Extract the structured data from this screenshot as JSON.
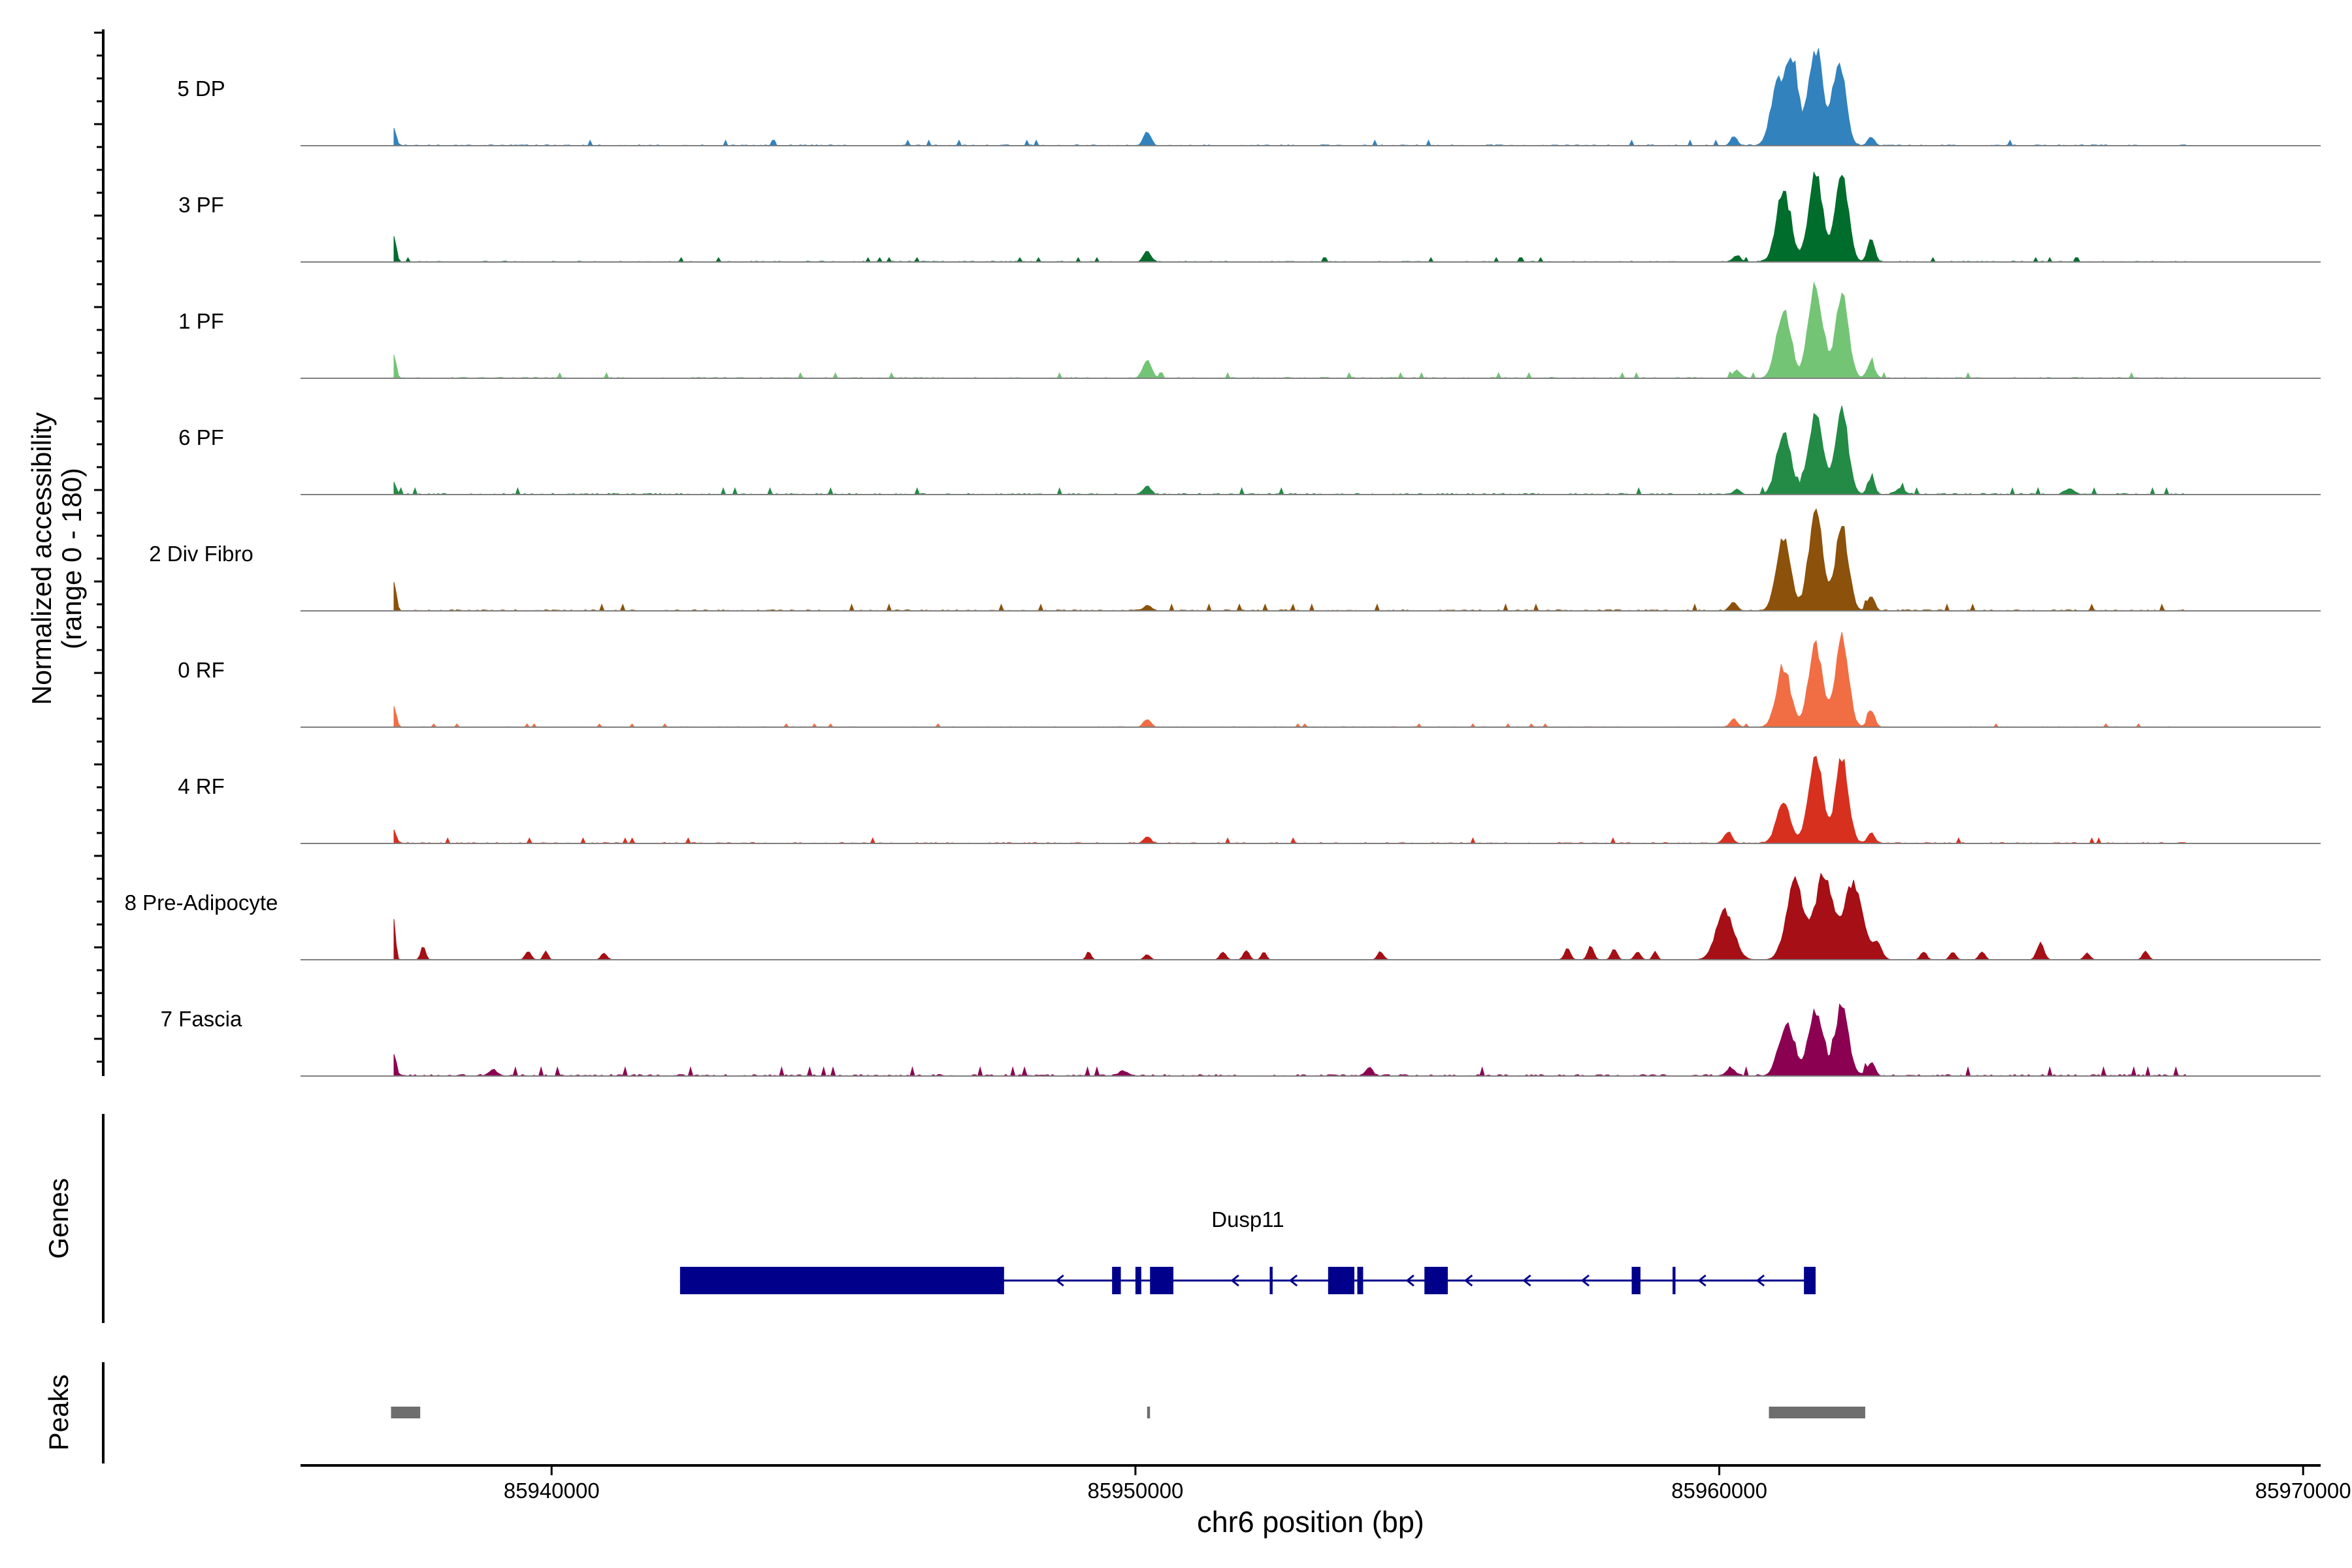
{
  "chart_data": {
    "type": "area",
    "title": "",
    "ylabel_lines": [
      "Normalized accessibility",
      "(range 0 - 180)"
    ],
    "ylim": [
      0,
      180
    ],
    "xlabel": "chr6 position (bp)",
    "xlim": [
      85935700,
      85970300
    ],
    "x_ticks": [
      85940000,
      85950000,
      85960000,
      85970000
    ],
    "x_tick_labels": [
      "85940000",
      "85950000",
      "85960000",
      "85970000"
    ],
    "tracks": [
      {
        "name": "5 DP",
        "color": "#3182bd",
        "peaks": [
          [
            85937300,
            30,
            40
          ],
          [
            85950200,
            25,
            60
          ],
          [
            85960250,
            18,
            50
          ],
          [
            85961000,
            110,
            120
          ],
          [
            85961250,
            150,
            100
          ],
          [
            85961650,
            180,
            120
          ],
          [
            85962050,
            150,
            110
          ],
          [
            85962600,
            15,
            60
          ]
        ],
        "noise": [
          85937300,
          85968000,
          5
        ]
      },
      {
        "name": "3 PF",
        "color": "#006d2c",
        "peaks": [
          [
            85937300,
            45,
            40
          ],
          [
            85950200,
            20,
            60
          ],
          [
            85960300,
            12,
            60
          ],
          [
            85961100,
            130,
            120
          ],
          [
            85961650,
            160,
            120
          ],
          [
            85962100,
            155,
            110
          ],
          [
            85962600,
            40,
            60
          ]
        ],
        "noise": [
          85937300,
          85968000,
          4
        ]
      },
      {
        "name": "1 PF",
        "color": "#74c476",
        "peaks": [
          [
            85937300,
            40,
            40
          ],
          [
            85950200,
            35,
            70
          ],
          [
            85960300,
            15,
            60
          ],
          [
            85961100,
            120,
            120
          ],
          [
            85961650,
            170,
            120
          ],
          [
            85962100,
            155,
            110
          ],
          [
            85962600,
            30,
            60
          ]
        ],
        "noise": [
          85937300,
          85968000,
          5
        ]
      },
      {
        "name": "6 PF",
        "color": "#238b45",
        "peaks": [
          [
            85937300,
            20,
            40
          ],
          [
            85950200,
            15,
            60
          ],
          [
            85960300,
            10,
            60
          ],
          [
            85961100,
            110,
            120
          ],
          [
            85961650,
            150,
            120
          ],
          [
            85962100,
            150,
            110
          ],
          [
            85962600,
            30,
            60
          ],
          [
            85963100,
            10,
            80
          ],
          [
            85966000,
            10,
            80
          ]
        ],
        "noise": [
          85937300,
          85968000,
          6
        ]
      },
      {
        "name": "2 Div Fibro",
        "color": "#8c510a",
        "peaks": [
          [
            85937300,
            50,
            40
          ],
          [
            85950200,
            10,
            60
          ],
          [
            85960250,
            15,
            60
          ],
          [
            85961100,
            130,
            120
          ],
          [
            85961650,
            180,
            120
          ],
          [
            85962100,
            155,
            110
          ],
          [
            85962600,
            25,
            60
          ]
        ],
        "noise": [
          85937300,
          85968000,
          6
        ]
      },
      {
        "name": "0 RF",
        "color": "#f16d44",
        "peaks": [
          [
            85937300,
            35,
            40
          ],
          [
            85950200,
            15,
            60
          ],
          [
            85960250,
            15,
            60
          ],
          [
            85961100,
            110,
            120
          ],
          [
            85961650,
            150,
            120
          ],
          [
            85962100,
            165,
            110
          ],
          [
            85962600,
            30,
            60
          ]
        ],
        "noise": [
          85937300,
          85968000,
          3
        ]
      },
      {
        "name": "4 RF",
        "color": "#d7301f",
        "peaks": [
          [
            85937300,
            25,
            40
          ],
          [
            85950200,
            12,
            60
          ],
          [
            85960150,
            20,
            70
          ],
          [
            85961100,
            70,
            120
          ],
          [
            85961650,
            155,
            120
          ],
          [
            85962100,
            150,
            110
          ],
          [
            85962600,
            20,
            60
          ]
        ],
        "noise": [
          85937300,
          85968000,
          5
        ]
      },
      {
        "name": "8 Pre-Adipocyte",
        "color": "#a50f15",
        "peaks": [
          [
            85937300,
            70,
            30
          ],
          [
            85937800,
            25,
            40
          ],
          [
            85939600,
            15,
            50
          ],
          [
            85939900,
            15,
            40
          ],
          [
            85940900,
            12,
            50
          ],
          [
            85949200,
            15,
            40
          ],
          [
            85950200,
            10,
            50
          ],
          [
            85951500,
            15,
            50
          ],
          [
            85951900,
            18,
            50
          ],
          [
            85952200,
            15,
            40
          ],
          [
            85954200,
            15,
            50
          ],
          [
            85957400,
            20,
            50
          ],
          [
            85957800,
            25,
            50
          ],
          [
            85958200,
            20,
            50
          ],
          [
            85958600,
            15,
            50
          ],
          [
            85958900,
            15,
            40
          ],
          [
            85960100,
            90,
            150
          ],
          [
            85961300,
            140,
            150
          ],
          [
            85961800,
            155,
            150
          ],
          [
            85962300,
            145,
            150
          ],
          [
            85962700,
            30,
            80
          ],
          [
            85963500,
            15,
            50
          ],
          [
            85964000,
            15,
            50
          ],
          [
            85964500,
            15,
            50
          ],
          [
            85965500,
            30,
            60
          ],
          [
            85966300,
            12,
            50
          ],
          [
            85967300,
            15,
            50
          ]
        ],
        "noise": [
          85937300,
          85968000,
          0
        ]
      },
      {
        "name": "7 Fascia",
        "color": "#8c0052",
        "peaks": [
          [
            85937300,
            40,
            40
          ],
          [
            85939000,
            10,
            80
          ],
          [
            85949800,
            8,
            80
          ],
          [
            85954000,
            15,
            60
          ],
          [
            85960200,
            15,
            70
          ],
          [
            85961150,
            95,
            130
          ],
          [
            85961650,
            120,
            120
          ],
          [
            85962100,
            130,
            110
          ],
          [
            85962600,
            25,
            60
          ]
        ],
        "noise": [
          85937300,
          85968000,
          8
        ]
      }
    ],
    "genes": {
      "label": "Genes",
      "gene_name": "Dusp11",
      "strand": "-",
      "color": "#00008b",
      "span": [
        85942200,
        85961650
      ],
      "exons": [
        [
          85942200,
          85947750
        ],
        [
          85949600,
          85949750
        ],
        [
          85950000,
          85950100
        ],
        [
          85950250,
          85950650
        ],
        [
          85952300,
          85952350
        ],
        [
          85953300,
          85953750
        ],
        [
          85953800,
          85953900
        ],
        [
          85954950,
          85955350
        ],
        [
          85958500,
          85958650
        ],
        [
          85959200,
          85959250
        ],
        [
          85961450,
          85961650
        ]
      ]
    },
    "peaks_track": {
      "label": "Peaks",
      "color": "#6e6e6e",
      "regions": [
        [
          85937250,
          85937750
        ],
        [
          85950200,
          85950250
        ],
        [
          85960850,
          85962500
        ]
      ]
    }
  }
}
